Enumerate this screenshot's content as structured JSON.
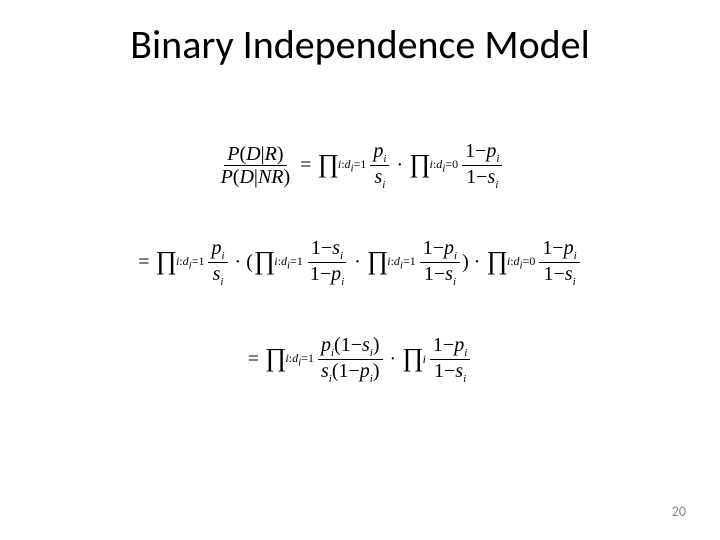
{
  "slide": {
    "title": "Binary Independence Model",
    "page_number": "20",
    "background_color": "#ffffff",
    "title_color": "#000000",
    "title_fontsize_pt": 40,
    "title_fontfamily": "Calibri",
    "formula_fontfamily": "Times New Roman",
    "formula_fontsize_pt": 20,
    "page_number_color": "#8a8a8a",
    "equations": [
      {
        "latex": "\\frac{P(D|R)}{P(D|NR)} = \\prod_{i:d_i=1} \\frac{p_i}{s_i} \\cdot \\prod_{i:d_i=0} \\frac{1-p_i}{1-s_i}"
      },
      {
        "latex": "= \\prod_{i:d_i=1} \\frac{p_i}{s_i} \\cdot ( \\prod_{i:d_i=1} \\frac{1-s_i}{1-p_i} \\cdot \\prod_{i:d_i=1} \\frac{1-p_i}{1-s_i} ) \\cdot \\prod_{i:d_i=0} \\frac{1-p_i}{1-s_i}"
      },
      {
        "latex": "= \\prod_{i:d_i=1} \\frac{p_i(1-s_i)}{s_i(1-p_i)} \\cdot \\prod_{i} \\frac{1-p_i}{1-s_i}"
      }
    ],
    "symbols": {
      "P": "P",
      "D": "D",
      "R": "R",
      "NR": "NR",
      "p": "p",
      "s": "s",
      "i": "i",
      "d": "d",
      "eq": "=",
      "dot": "·",
      "lpar": "(",
      "rpar": ")",
      "one": "1",
      "zero": "0",
      "minus": "−",
      "bar": "|",
      "prod": "∏",
      "colon": ":"
    }
  }
}
